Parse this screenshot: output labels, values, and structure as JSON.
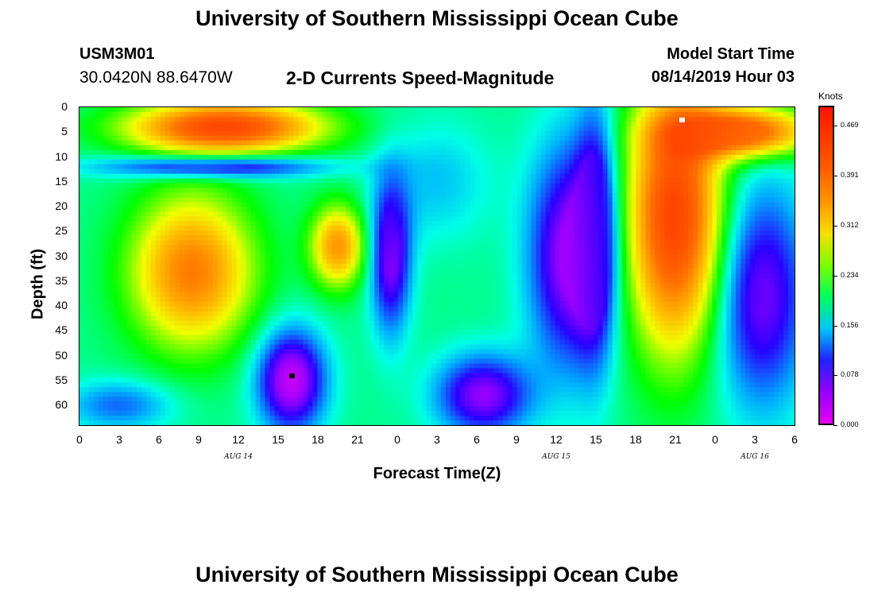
{
  "title": "University of Southern Mississippi Ocean Cube",
  "title_bottom": "University of Southern Mississippi Ocean Cube",
  "station": {
    "id": "USM3M01",
    "latlon": "30.0420N 88.6470W"
  },
  "plot_title": "2-D Currents Speed-Magnitude",
  "model_start": {
    "label": "Model Start Time",
    "value": "08/14/2019 Hour 03"
  },
  "chart_data": {
    "type": "heatmap",
    "title": "2-D Currents Speed-Magnitude",
    "xlabel": "Forecast Time(Z)",
    "ylabel": "Depth (ft)",
    "x_ticks": [
      "0",
      "3",
      "6",
      "9",
      "12",
      "15",
      "18",
      "21",
      "0",
      "3",
      "6",
      "9",
      "12",
      "15",
      "18",
      "21",
      "0",
      "3",
      "6"
    ],
    "day_labels": [
      {
        "text": "AUG 14",
        "hour": 12
      },
      {
        "text": "AUG 15",
        "hour": 36
      },
      {
        "text": "AUG 16",
        "hour": 51
      }
    ],
    "xlim_hours": [
      0,
      54
    ],
    "y_ticks": [
      "0",
      "5",
      "10",
      "15",
      "20",
      "25",
      "30",
      "35",
      "40",
      "45",
      "50",
      "55",
      "60"
    ],
    "ylim_ft": [
      0,
      64
    ],
    "colorbar": {
      "unit": "Knots",
      "tick_labels": [
        "0.469",
        "0.391",
        "0.312",
        "0.234",
        "0.156",
        "0.078",
        "0.000"
      ],
      "range": [
        0.0,
        0.5
      ]
    },
    "markers": [
      {
        "color": "#ffffff",
        "hour": 45.5,
        "depth_ft": 2.5
      },
      {
        "color": "#000000",
        "hour": 16,
        "depth_ft": 54
      }
    ],
    "features": [
      {
        "hour": 11,
        "depth": 4,
        "speed": 0.43,
        "rx": 7,
        "ry": 5
      },
      {
        "hour": 8.5,
        "depth": 33,
        "speed": 0.37,
        "rx": 4.5,
        "ry": 15
      },
      {
        "hour": 19.5,
        "depth": 28,
        "speed": 0.35,
        "rx": 2,
        "ry": 8
      },
      {
        "hour": 10,
        "depth": 12,
        "speed": 0.06,
        "rx": 8,
        "ry": 2.2
      },
      {
        "hour": 16,
        "depth": 55,
        "speed": 0.02,
        "rx": 2.5,
        "ry": 10
      },
      {
        "hour": 23.5,
        "depth": 30,
        "speed": 0.05,
        "rx": 1.5,
        "ry": 15
      },
      {
        "hour": 30.5,
        "depth": 58,
        "speed": 0.05,
        "rx": 3.5,
        "ry": 8
      },
      {
        "hour": 37,
        "depth": 30,
        "speed": 0.04,
        "rx": 3,
        "ry": 22
      },
      {
        "hour": 39,
        "depth": 25,
        "speed": 0.08,
        "rx": 1.5,
        "ry": 25
      },
      {
        "hour": 45,
        "depth": 22,
        "speed": 0.44,
        "rx": 3.5,
        "ry": 26
      },
      {
        "hour": 50,
        "depth": 5,
        "speed": 0.42,
        "rx": 5,
        "ry": 5
      },
      {
        "hour": 51.5,
        "depth": 38,
        "speed": 0.06,
        "rx": 3.5,
        "ry": 22
      },
      {
        "hour": 3,
        "depth": 60,
        "speed": 0.12,
        "rx": 4,
        "ry": 5
      },
      {
        "hour": 27,
        "depth": 15,
        "speed": 0.15,
        "rx": 4,
        "ry": 12
      }
    ]
  }
}
